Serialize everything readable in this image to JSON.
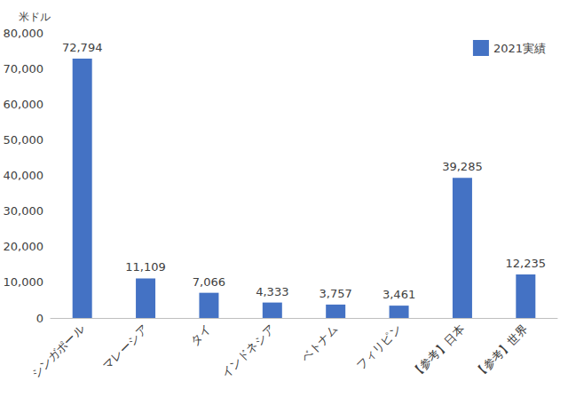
{
  "chart_data": {
    "type": "bar",
    "ylabel": "米ドル",
    "categories": [
      "シンガポール",
      "マレーシア",
      "タイ",
      "インドネシア",
      "ベトナム",
      "フィリピン",
      "【参考】日本",
      "【参考】世界"
    ],
    "series": [
      {
        "name": "2021実績",
        "color": "#4472c4",
        "values": [
          72794,
          11109,
          7066,
          4333,
          3757,
          3461,
          39285,
          12235
        ],
        "value_labels": [
          "72,794",
          "11,109",
          "7,066",
          "4,333",
          "3,757",
          "3,461",
          "39,285",
          "12,235"
        ]
      }
    ],
    "ylim": [
      0,
      80000
    ],
    "yticks": [
      0,
      {
        "value": 10000,
        "label": "10,000"
      },
      {
        "value": 20000,
        "label": "20,000"
      },
      {
        "value": 30000,
        "label": "30,000"
      },
      {
        "value": 40000,
        "label": "40,000"
      },
      {
        "value": 50000,
        "label": "50,000"
      },
      {
        "value": 60000,
        "label": "60,000"
      },
      {
        "value": 70000,
        "label": "70,000"
      },
      {
        "value": 80000,
        "label": "80,000"
      }
    ],
    "grid": false,
    "legend": "upper right",
    "data_labels": true
  }
}
